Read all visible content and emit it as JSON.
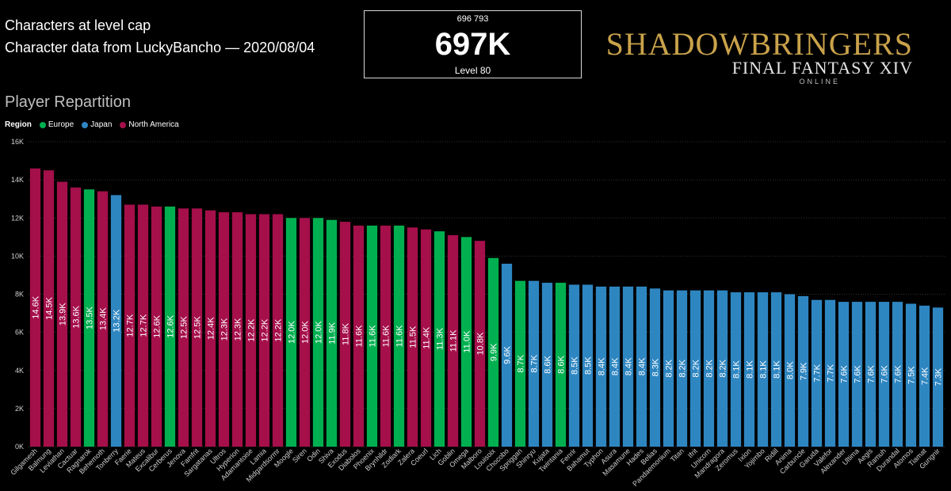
{
  "header": {
    "title": "Characters at level cap",
    "subtitle": "Character data from LuckyBancho — 2020/08/04"
  },
  "kpi": {
    "exact": "696 793",
    "value": "697K",
    "label": "Level 80"
  },
  "logo": {
    "main": "SHADOWBRINGERS",
    "sub": "FINAL FANTASY XIV",
    "tag": "ONLINE"
  },
  "section_title": "Player Repartition",
  "legend": {
    "title": "Region",
    "items": [
      {
        "name": "Europe",
        "color": "#00b050"
      },
      {
        "name": "Japan",
        "color": "#2e86c1"
      },
      {
        "name": "North America",
        "color": "#a50f4a"
      }
    ]
  },
  "chart_data": {
    "type": "bar",
    "title": "Player Repartition",
    "ylim": [
      0,
      16000
    ],
    "yticks": [
      "0K",
      "2K",
      "4K",
      "6K",
      "8K",
      "10K",
      "12K",
      "14K",
      "16K"
    ],
    "grid": true,
    "legend_position": "top-left",
    "categories": [
      "Gilgamesh",
      "Balmung",
      "Leviathan",
      "Cactuar",
      "Ragnarok",
      "Behemoth",
      "Tonberry",
      "Faerie",
      "Mateus",
      "Excalibur",
      "Cerberus",
      "Jenova",
      "Famfrit",
      "Sargatanas",
      "Ultros",
      "Hyperion",
      "Adamantoise",
      "Lamia",
      "Midgardsormr",
      "Moogle",
      "Siren",
      "Odin",
      "Shiva",
      "Exodus",
      "Diabolos",
      "Phoenix",
      "Brynhildr",
      "Zodiark",
      "Zalera",
      "Coeurl",
      "Lich",
      "Goblin",
      "Omega",
      "Malboro",
      "Louisoix",
      "Chocobo",
      "Spriggan",
      "Shinryu",
      "Kujata",
      "Twintania",
      "Fenrir",
      "Bahamut",
      "Typhon",
      "Asura",
      "Masamune",
      "Hades",
      "Belias",
      "Pandaemonium",
      "Titan",
      "Ifrit",
      "Unicorn",
      "Mandragora",
      "Zeromus",
      "Ixion",
      "Yojimbo",
      "Ridill",
      "Anima",
      "Carbuncle",
      "Garuda",
      "Valefor",
      "Alexander",
      "Ultima",
      "Aegis",
      "Ramuh",
      "Durandal",
      "Atomos",
      "Tiamat",
      "Gungnir"
    ],
    "values": [
      14600,
      14500,
      13900,
      13600,
      13500,
      13400,
      13200,
      12700,
      12700,
      12600,
      12600,
      12500,
      12500,
      12400,
      12300,
      12300,
      12200,
      12200,
      12200,
      12000,
      12000,
      12000,
      11900,
      11800,
      11600,
      11600,
      11600,
      11600,
      11500,
      11400,
      11300,
      11100,
      11000,
      10800,
      9900,
      9600,
      8700,
      8700,
      8600,
      8600,
      8500,
      8500,
      8400,
      8400,
      8400,
      8400,
      8300,
      8200,
      8200,
      8200,
      8200,
      8200,
      8100,
      8100,
      8100,
      8100,
      8000,
      7900,
      7700,
      7700,
      7600,
      7600,
      7600,
      7600,
      7600,
      7500,
      7400,
      7300
    ],
    "data_labels": [
      "14.6K",
      "14.5K",
      "13.9K",
      "13.6K",
      "13.5K",
      "13.4K",
      "13.2K",
      "12.7K",
      "12.7K",
      "12.6K",
      "12.6K",
      "12.5K",
      "12.5K",
      "12.4K",
      "12.3K",
      "12.3K",
      "12.2K",
      "12.2K",
      "12.2K",
      "12.0K",
      "12.0K",
      "12.0K",
      "11.9K",
      "11.8K",
      "11.6K",
      "11.6K",
      "11.6K",
      "11.6K",
      "11.5K",
      "11.4K",
      "11.3K",
      "11.1K",
      "11.0K",
      "10.8K",
      "9.9K",
      "9.6K",
      "8.7K",
      "8.7K",
      "8.6K",
      "8.6K",
      "8.5K",
      "8.5K",
      "8.4K",
      "8.4K",
      "8.4K",
      "8.4K",
      "8.3K",
      "8.2K",
      "8.2K",
      "8.2K",
      "8.2K",
      "8.2K",
      "8.1K",
      "8.1K",
      "8.1K",
      "8.1K",
      "8.0K",
      "7.9K",
      "7.7K",
      "7.7K",
      "7.6K",
      "7.6K",
      "7.6K",
      "7.6K",
      "7.6K",
      "7.5K",
      "7.4K",
      "7.3K"
    ],
    "regions": [
      "North America",
      "North America",
      "North America",
      "North America",
      "Europe",
      "North America",
      "Japan",
      "North America",
      "North America",
      "North America",
      "Europe",
      "North America",
      "North America",
      "North America",
      "North America",
      "North America",
      "North America",
      "North America",
      "North America",
      "Europe",
      "North America",
      "Europe",
      "Europe",
      "North America",
      "North America",
      "Europe",
      "North America",
      "Europe",
      "North America",
      "North America",
      "Europe",
      "North America",
      "Europe",
      "North America",
      "Europe",
      "Japan",
      "Europe",
      "Japan",
      "Japan",
      "Europe",
      "Japan",
      "Japan",
      "Japan",
      "Japan",
      "Japan",
      "Japan",
      "Japan",
      "Japan",
      "Japan",
      "Japan",
      "Japan",
      "Japan",
      "Japan",
      "Japan",
      "Japan",
      "Japan",
      "Japan",
      "Japan",
      "Japan",
      "Japan",
      "Japan",
      "Japan",
      "Japan",
      "Japan",
      "Japan",
      "Japan",
      "Japan",
      "Japan"
    ]
  }
}
